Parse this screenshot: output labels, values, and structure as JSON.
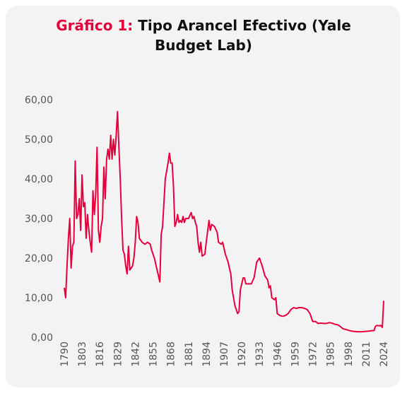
{
  "chart_data": {
    "type": "line",
    "title_prefix": "Gráfico 1:",
    "title": "Tipo Arancel Efectivo (Yale Budget Lab)",
    "x": [
      1790,
      1791,
      1792,
      1793,
      1794,
      1795,
      1796,
      1797,
      1798,
      1799,
      1800,
      1801,
      1802,
      1803,
      1804,
      1805,
      1806,
      1807,
      1808,
      1809,
      1810,
      1811,
      1812,
      1813,
      1814,
      1815,
      1816,
      1817,
      1818,
      1819,
      1820,
      1821,
      1822,
      1823,
      1824,
      1825,
      1826,
      1827,
      1828,
      1829,
      1830,
      1831,
      1832,
      1833,
      1834,
      1835,
      1836,
      1837,
      1838,
      1839,
      1840,
      1841,
      1842,
      1843,
      1844,
      1845,
      1847,
      1849,
      1851,
      1853,
      1854,
      1856,
      1858,
      1859,
      1860,
      1861,
      1862,
      1863,
      1864,
      1866,
      1867,
      1868,
      1869,
      1870,
      1871,
      1872,
      1873,
      1874,
      1875,
      1876,
      1877,
      1878,
      1879,
      1881,
      1883,
      1884,
      1885,
      1886,
      1887,
      1888,
      1889,
      1890,
      1891,
      1893,
      1894,
      1896,
      1897,
      1898,
      1900,
      1902,
      1903,
      1905,
      1906,
      1908,
      1910,
      1912,
      1913,
      1915,
      1917,
      1918,
      1919,
      1921,
      1922,
      1923,
      1925,
      1927,
      1929,
      1931,
      1933,
      1935,
      1937,
      1939,
      1940,
      1941,
      1942,
      1944,
      1945,
      1946,
      1948,
      1950,
      1952,
      1954,
      1956,
      1958,
      1960,
      1962,
      1964,
      1966,
      1968,
      1970,
      1972,
      1974,
      1976,
      1978,
      1980,
      1982,
      1984,
      1986,
      1988,
      1990,
      1992,
      1994,
      1996,
      1998,
      2000,
      2002,
      2005,
      2008,
      2011,
      2014,
      2016,
      2017,
      2018,
      2019,
      2021,
      2022,
      2023,
      2024
    ],
    "series": [
      {
        "name": "Tipo Arancel Efectivo",
        "color": "#e8003d",
        "values": [
          12.5,
          10,
          18,
          25,
          30,
          17.5,
          23,
          24,
          44.5,
          30,
          31,
          35,
          27,
          41,
          33,
          34,
          25,
          31,
          27,
          24,
          21.5,
          37,
          31,
          36,
          48,
          27,
          24,
          28,
          30,
          43,
          35,
          45,
          47.5,
          45,
          51,
          45,
          50,
          46,
          51,
          57,
          48,
          40,
          30,
          22,
          21,
          18,
          16,
          23,
          17,
          17.5,
          18,
          20,
          24,
          30.5,
          29,
          25,
          24,
          23.5,
          24,
          23.5,
          22,
          20,
          17,
          15.5,
          14,
          26,
          28,
          34,
          40,
          44,
          46.5,
          44,
          44,
          38,
          28,
          29,
          31,
          29,
          29.5,
          29,
          30.5,
          29,
          30,
          30,
          31.5,
          30,
          30.5,
          29,
          28,
          24,
          21.5,
          24,
          20.5,
          21,
          24,
          29.5,
          27,
          28.5,
          28,
          26.5,
          24,
          23.5,
          24,
          21,
          19,
          16,
          12,
          8,
          6,
          6.5,
          12,
          15,
          15,
          13.5,
          13.5,
          13.5,
          15,
          19,
          20,
          18,
          15.5,
          14.5,
          12.5,
          13,
          10,
          9.5,
          10,
          6,
          5.5,
          5.3,
          5.5,
          6,
          7,
          7.5,
          7.3,
          7.5,
          7.5,
          7.3,
          7,
          6,
          4,
          4,
          3.5,
          3.6,
          3.5,
          3.5,
          3.7,
          3.6,
          3.3,
          3.2,
          2.8,
          2.2,
          2,
          1.8,
          1.6,
          1.5,
          1.4,
          1.4,
          1.5,
          1.6,
          1.7,
          1.7,
          2.8,
          3,
          2.9,
          3,
          2.5,
          9.2
        ]
      }
    ],
    "xlim": [
      1790,
      2024
    ],
    "xticks": [
      1790,
      1803,
      1816,
      1829,
      1842,
      1855,
      1868,
      1881,
      1894,
      1907,
      1920,
      1933,
      1946,
      1959,
      1972,
      1985,
      1998,
      2011,
      2024
    ],
    "ylim": [
      0,
      60
    ],
    "yticks": [
      {
        "value": 0,
        "label": "0,00"
      },
      {
        "value": 10,
        "label": "10,00"
      },
      {
        "value": 20,
        "label": "20,00"
      },
      {
        "value": 30,
        "label": "30,00"
      },
      {
        "value": 40,
        "label": "40,00"
      },
      {
        "value": 50,
        "label": "50,00"
      },
      {
        "value": 60,
        "label": "60,00"
      }
    ],
    "grid": false
  }
}
